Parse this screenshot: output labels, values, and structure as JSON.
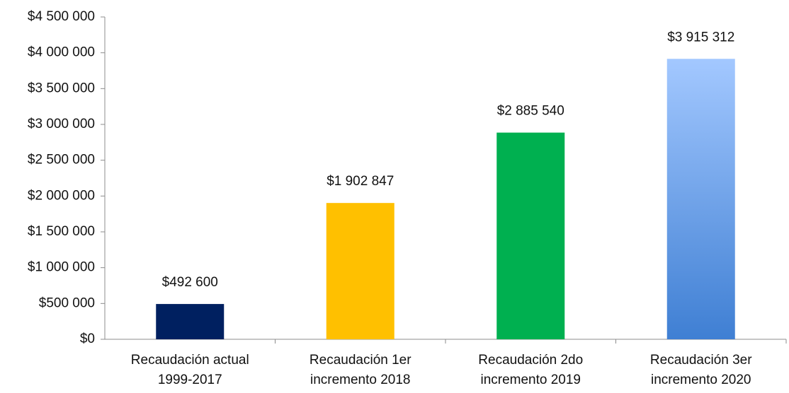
{
  "chart_data": {
    "type": "bar",
    "categories": [
      [
        "Recaudación actual",
        "1999-2017"
      ],
      [
        "Recaudación 1er",
        "incremento 2018"
      ],
      [
        "Recaudación 2do",
        "incremento 2019"
      ],
      [
        "Recaudación 3er",
        "incremento 2020"
      ]
    ],
    "values": [
      492600,
      1902847,
      2885540,
      3915312
    ],
    "value_labels": [
      "$492 600",
      "$1 902 847",
      "$2 885 540",
      "$3 915 312"
    ],
    "colors": [
      "#002060",
      "#ffc000",
      "#00b050",
      "#3f7fd3"
    ],
    "ylim": [
      0,
      4500000
    ],
    "yticks": [
      {
        "value": 0,
        "label": "$0"
      },
      {
        "value": 500000,
        "label": "$500 000"
      },
      {
        "value": 1000000,
        "label": "$1 000 000"
      },
      {
        "value": 1500000,
        "label": "$1 500 000"
      },
      {
        "value": 2000000,
        "label": "$2 000 000"
      },
      {
        "value": 2500000,
        "label": "$2 500 000"
      },
      {
        "value": 3000000,
        "label": "$3 000 000"
      },
      {
        "value": 3500000,
        "label": "$3 500 000"
      },
      {
        "value": 4000000,
        "label": "$4 000 000"
      },
      {
        "value": 4500000,
        "label": "$4 500 000"
      }
    ],
    "grid": false
  }
}
